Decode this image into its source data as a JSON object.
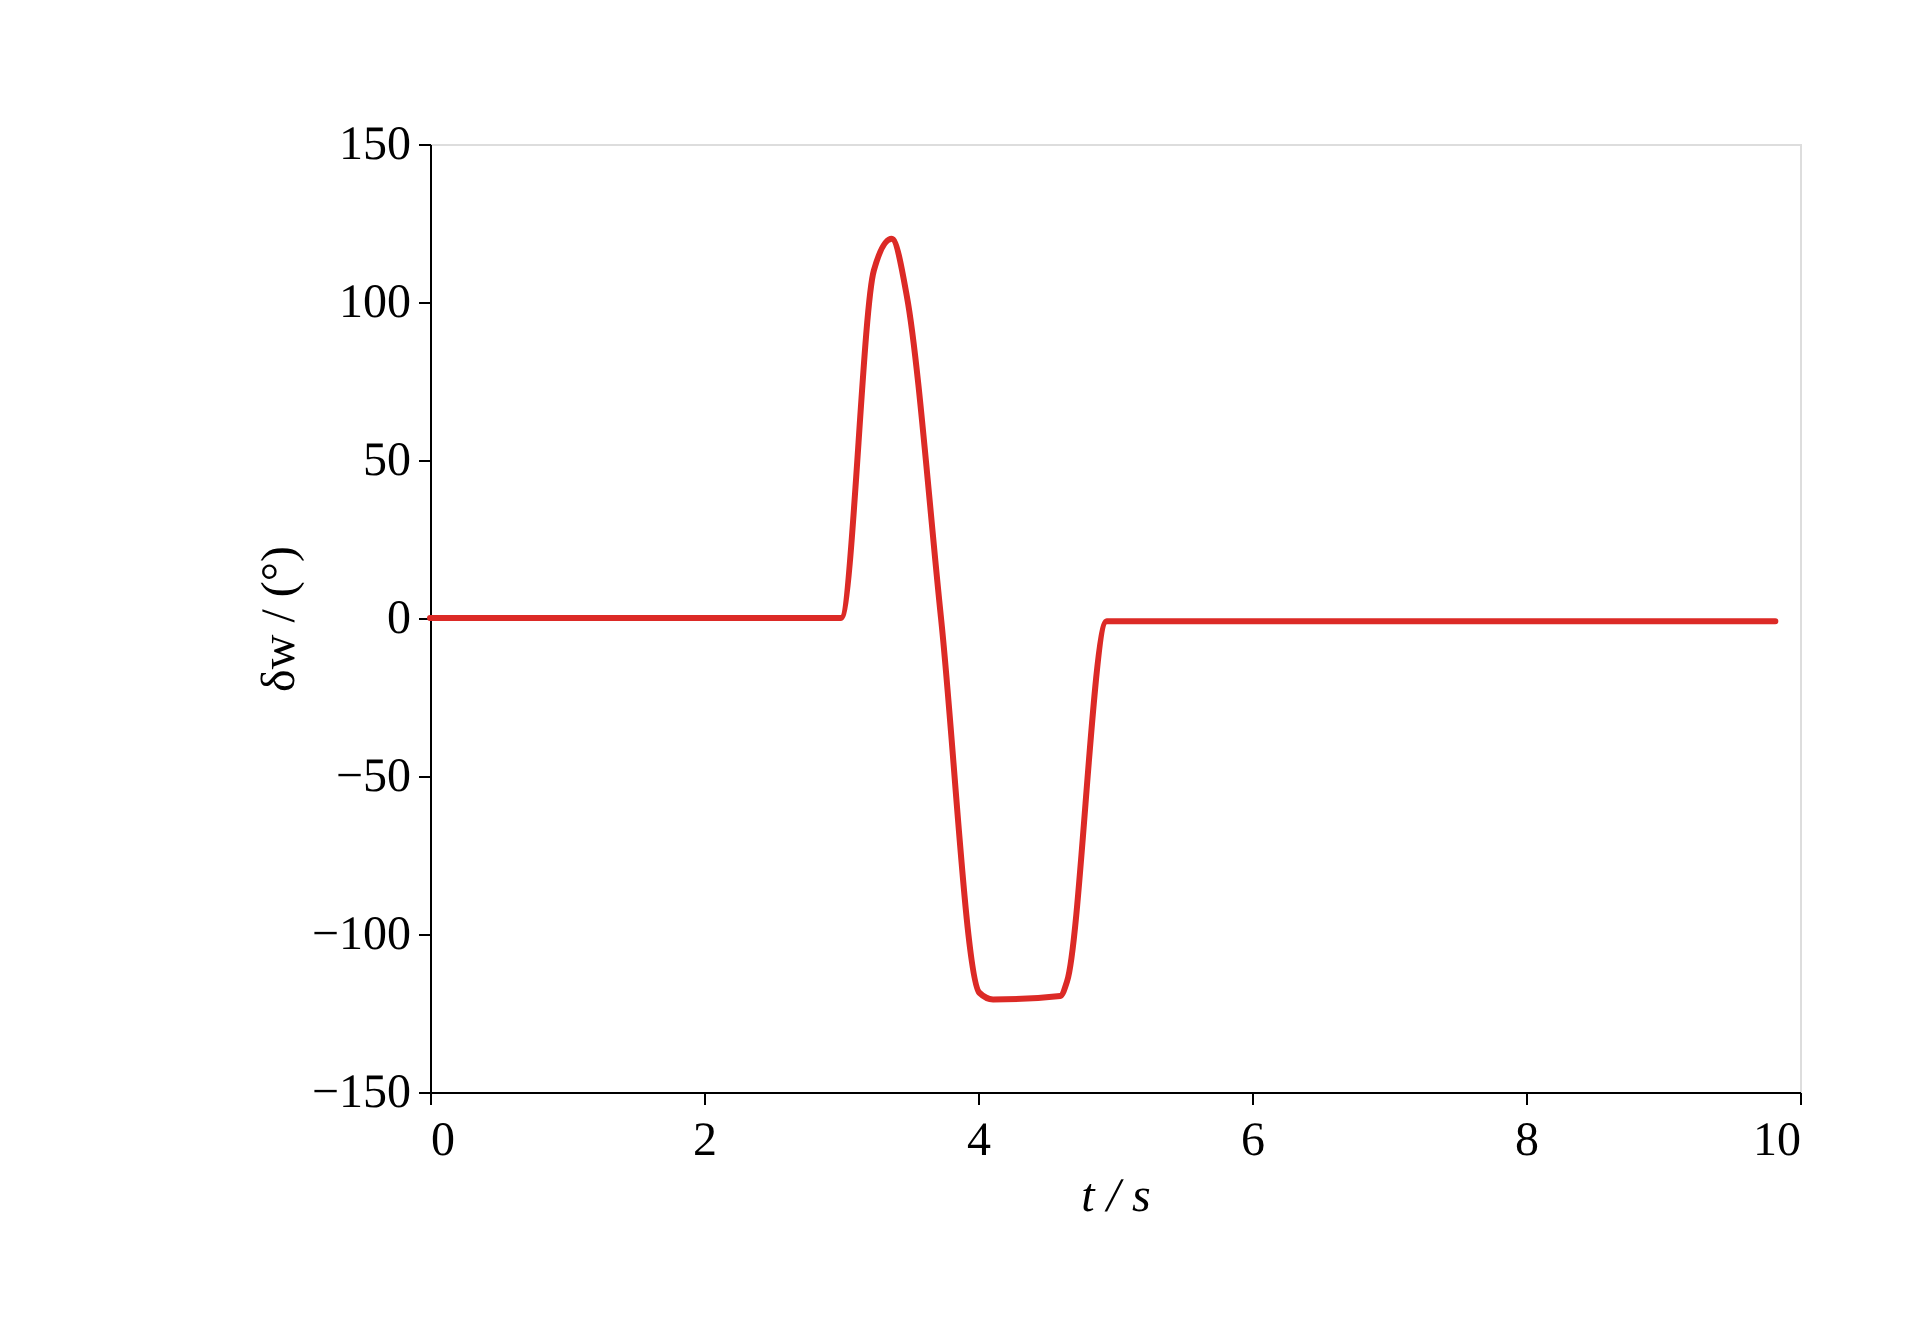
{
  "chart_data": {
    "type": "line",
    "xlabel": "t / s",
    "ylabel": "δw / (°)",
    "x": [
      0,
      3.0,
      3.24,
      3.37,
      3.48,
      3.73,
      4.01,
      4.11,
      4.6,
      4.65,
      4.94,
      9.82
    ],
    "series": [
      {
        "color": "#dc2a26",
        "values": [
          0,
          0,
          110,
          120,
          102,
          0,
          -118.6,
          -120.7,
          -119.6,
          -115,
          -1,
          -1
        ]
      }
    ],
    "xlim": [
      0,
      10
    ],
    "xticks": [
      0,
      2,
      4,
      6,
      8,
      10
    ],
    "ylim": [
      -150,
      150
    ],
    "yticks": [
      -150,
      -100,
      -50,
      0,
      50,
      100,
      150
    ],
    "grid": false,
    "marker": "none",
    "line_style": "solid"
  }
}
